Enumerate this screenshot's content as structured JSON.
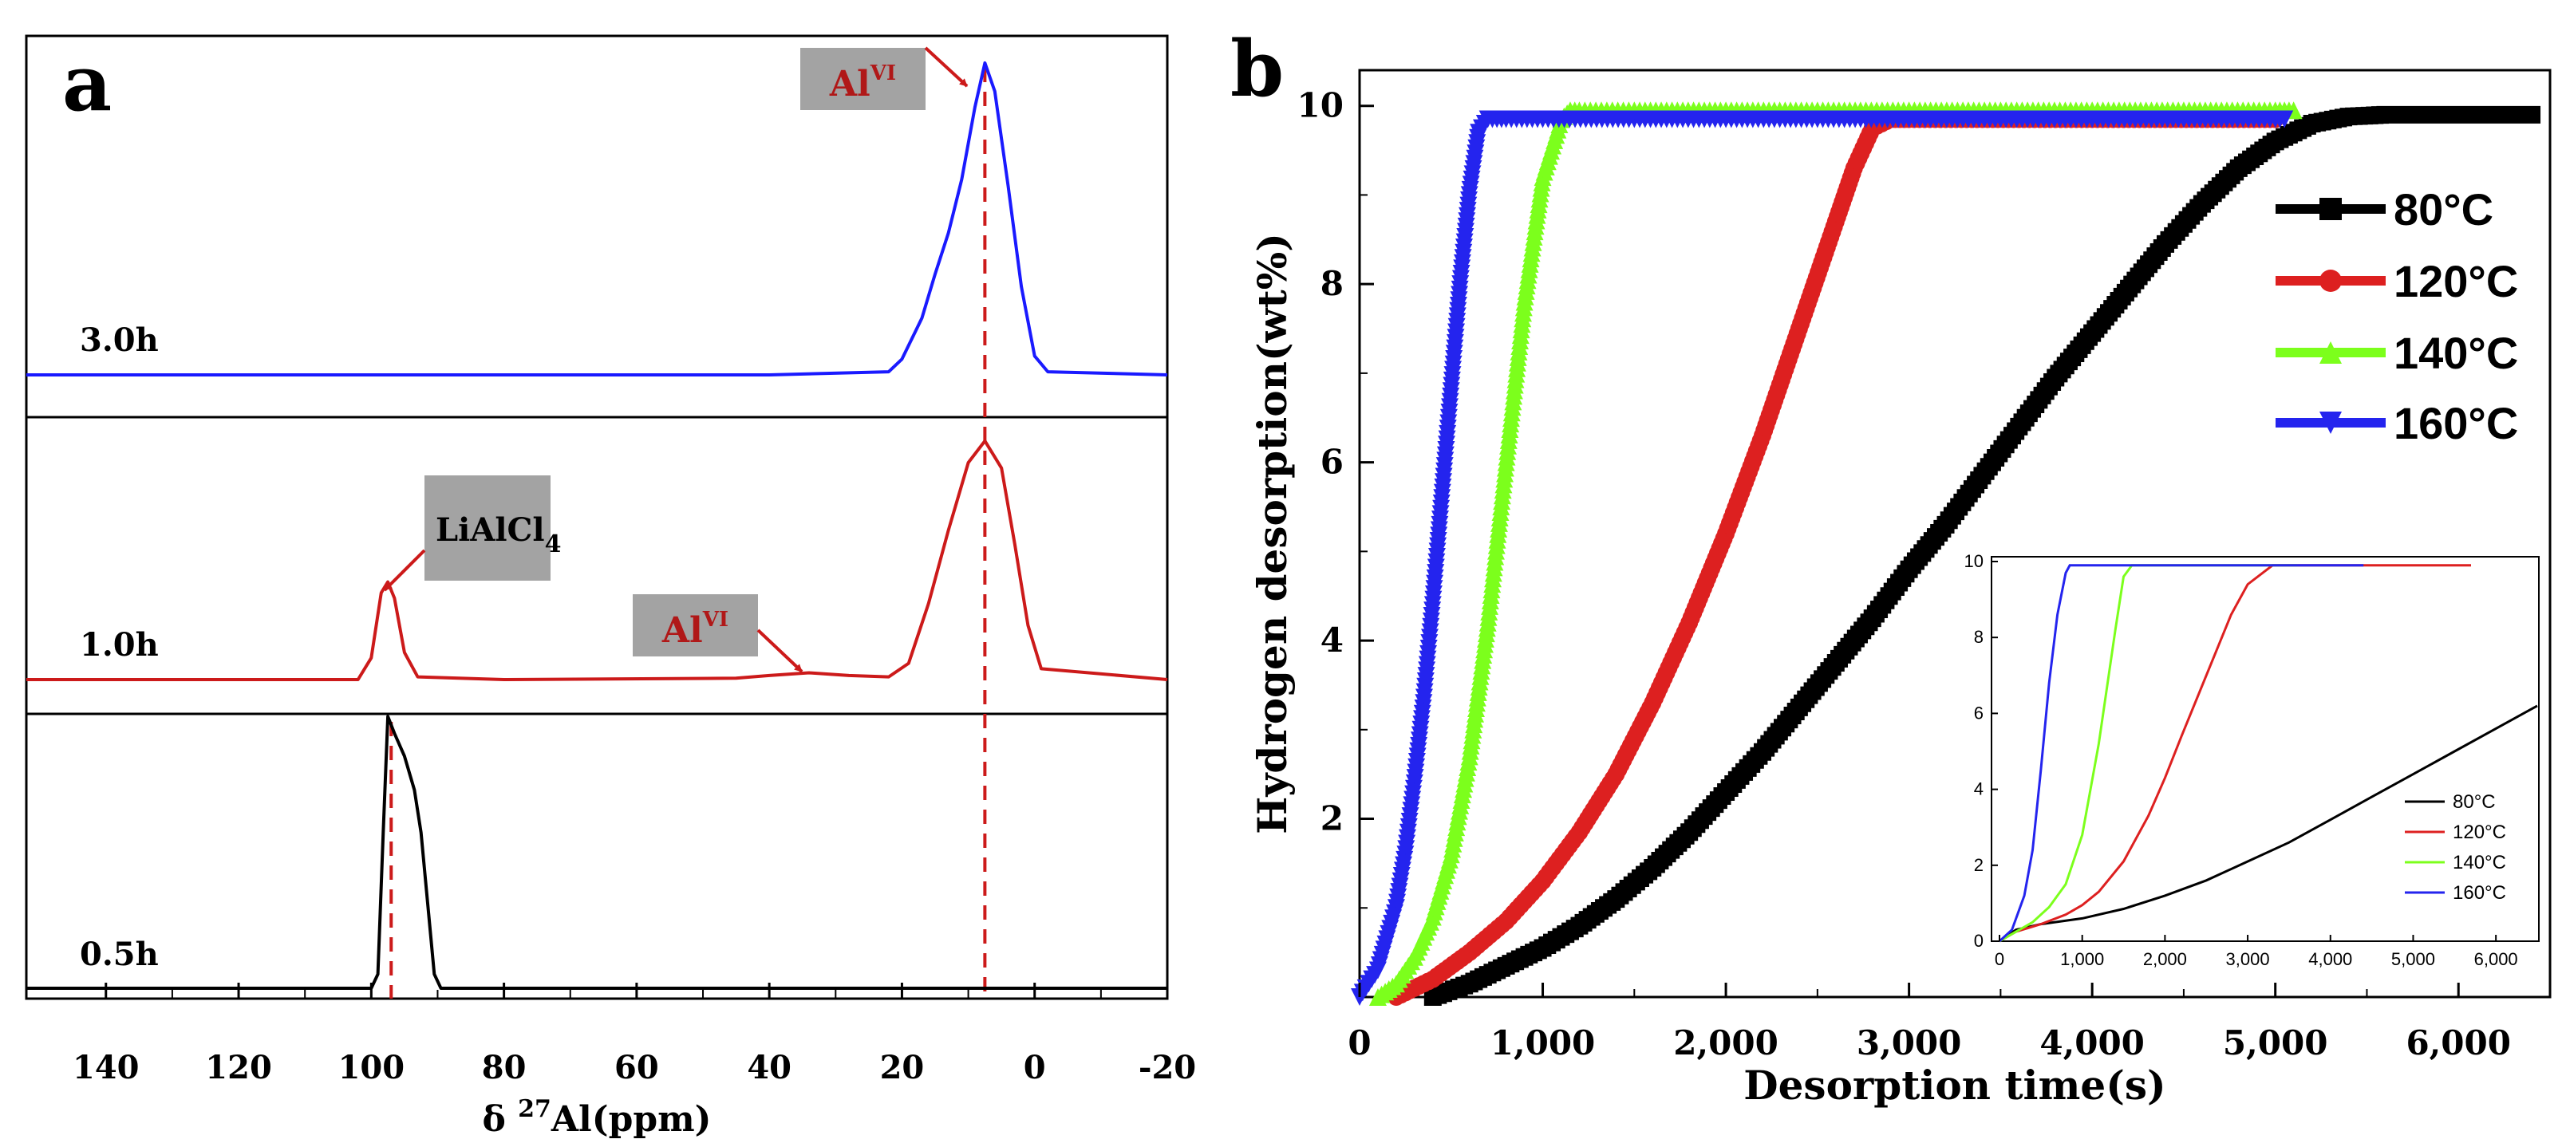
{
  "chart_data": [
    {
      "panel": "a",
      "type": "line",
      "xlabel": "δ ²⁷Al(ppm)",
      "xlabel_parts": {
        "prefix": "δ ",
        "sup": "27",
        "suffix": "Al(ppm)"
      },
      "xlim": [
        152,
        -20
      ],
      "x_ticks": [
        140,
        120,
        100,
        80,
        60,
        40,
        20,
        0,
        -20
      ],
      "x_tick_labels": [
        "140",
        "120",
        "100",
        "80",
        "60",
        "40",
        "20",
        "0",
        "-20"
      ],
      "grid": false,
      "series": [
        {
          "name": "3.0h",
          "color": "#1a1aff",
          "peaks": [
            {
              "center": 7.5,
              "width": 5.5,
              "height": 0.94
            },
            {
              "center": 13,
              "width": 5,
              "height": 0.25
            }
          ],
          "points": [
            [
              152,
              0
            ],
            [
              40,
              0
            ],
            [
              22,
              0.01
            ],
            [
              20,
              0.05
            ],
            [
              17,
              0.18
            ],
            [
              15,
              0.32
            ],
            [
              13,
              0.45
            ],
            [
              11,
              0.62
            ],
            [
              9,
              0.85
            ],
            [
              7.5,
              0.99
            ],
            [
              6,
              0.9
            ],
            [
              4,
              0.6
            ],
            [
              2,
              0.28
            ],
            [
              0,
              0.06
            ],
            [
              -2,
              0.01
            ],
            [
              -20,
              0
            ]
          ]
        },
        {
          "name": "1.0h",
          "color": "#cc1a1a",
          "peaks": [
            {
              "center": 97.5,
              "width": 2.2,
              "height": 0.35
            },
            {
              "center": 7.5,
              "width": 5.5,
              "height": 0.88
            },
            {
              "center": 34,
              "width": 6,
              "height": 0.02
            }
          ],
          "points": [
            [
              152,
              0
            ],
            [
              102,
              0
            ],
            [
              100,
              0.08
            ],
            [
              98.5,
              0.32
            ],
            [
              97.5,
              0.36
            ],
            [
              96.5,
              0.3
            ],
            [
              95,
              0.1
            ],
            [
              93,
              0.01
            ],
            [
              80,
              0
            ],
            [
              45,
              0.005
            ],
            [
              40,
              0.015
            ],
            [
              34,
              0.025
            ],
            [
              28,
              0.015
            ],
            [
              22,
              0.01
            ],
            [
              19,
              0.06
            ],
            [
              16,
              0.28
            ],
            [
              13,
              0.55
            ],
            [
              10,
              0.8
            ],
            [
              7.5,
              0.88
            ],
            [
              5,
              0.78
            ],
            [
              3,
              0.5
            ],
            [
              1,
              0.2
            ],
            [
              -1,
              0.04
            ],
            [
              -20,
              0
            ]
          ]
        },
        {
          "name": "0.5h",
          "color": "#000000",
          "peaks": [
            {
              "center": 97,
              "width": 2.5,
              "height": 0.92
            }
          ],
          "points": [
            [
              152,
              0
            ],
            [
              100,
              0
            ],
            [
              99,
              0.05
            ],
            [
              98.2,
              0.55
            ],
            [
              97.5,
              0.96
            ],
            [
              96.5,
              0.9
            ],
            [
              95,
              0.82
            ],
            [
              93.5,
              0.7
            ],
            [
              92.5,
              0.55
            ],
            [
              91.5,
              0.3
            ],
            [
              90.5,
              0.05
            ],
            [
              89.5,
              0
            ],
            [
              -20,
              0
            ]
          ]
        }
      ],
      "annotations": [
        {
          "text": "Al",
          "sup": "VI",
          "target_x": 7.5,
          "series": "3.0h"
        },
        {
          "text": "LiAlCl",
          "sub": "4",
          "target_x": 97.5,
          "series": "1.0h"
        },
        {
          "text": "Al",
          "sup": "VI",
          "target_x": 34,
          "series": "1.0h"
        }
      ],
      "reference_lines": [
        97,
        7.5
      ],
      "reference_line_color": "#cc1a1a"
    },
    {
      "panel": "b",
      "type": "scatter",
      "xlabel": "Desorption time(s)",
      "ylabel": "Hydrogen desorption(wt%)",
      "xlim": [
        0,
        6500
      ],
      "ylim": [
        0,
        10.4
      ],
      "x_ticks": [
        0,
        1000,
        2000,
        3000,
        4000,
        5000,
        6000
      ],
      "x_tick_labels": [
        "0",
        "1,000",
        "2,000",
        "3,000",
        "4,000",
        "5,000",
        "6,000"
      ],
      "y_ticks": [
        2,
        4,
        6,
        8,
        10
      ],
      "y_tick_labels": [
        "2",
        "4",
        "6",
        "8",
        "10"
      ],
      "grid": false,
      "legend_position": "top-right",
      "series": [
        {
          "name": "80°C",
          "color": "#000000",
          "marker": "square",
          "x": [
            400,
            600,
            800,
            1000,
            1200,
            1400,
            1600,
            1800,
            2000,
            2200,
            2400,
            2600,
            2800,
            3000,
            3200,
            3400,
            3600,
            3800,
            4000,
            4200,
            4400,
            4600,
            4800,
            5000,
            5200,
            5400,
            5600,
            5800,
            6000,
            6200,
            6400
          ],
          "y": [
            0,
            0.15,
            0.35,
            0.55,
            0.8,
            1.1,
            1.45,
            1.85,
            2.3,
            2.75,
            3.25,
            3.75,
            4.25,
            4.8,
            5.3,
            5.85,
            6.4,
            6.95,
            7.45,
            7.95,
            8.45,
            8.9,
            9.3,
            9.6,
            9.8,
            9.88,
            9.9,
            9.9,
            9.9,
            9.9,
            9.9
          ]
        },
        {
          "name": "120°C",
          "color": "#dd2020",
          "marker": "circle",
          "x": [
            200,
            400,
            600,
            800,
            1000,
            1200,
            1400,
            1600,
            1800,
            2000,
            2200,
            2400,
            2600,
            2700,
            2800,
            2900,
            3000,
            3200,
            3400,
            3600,
            3800,
            4000,
            4200,
            4400,
            4600,
            4800,
            5000
          ],
          "y": [
            0,
            0.2,
            0.5,
            0.85,
            1.3,
            1.85,
            2.5,
            3.3,
            4.2,
            5.2,
            6.3,
            7.5,
            8.7,
            9.3,
            9.75,
            9.85,
            9.85,
            9.85,
            9.85,
            9.85,
            9.85,
            9.85,
            9.85,
            9.85,
            9.85,
            9.85,
            9.85
          ]
        },
        {
          "name": "140°C",
          "color": "#7cff1c",
          "marker": "triangle-up",
          "x": [
            100,
            200,
            300,
            400,
            500,
            600,
            700,
            800,
            900,
            1000,
            1100,
            1150,
            1200,
            1500,
            2000,
            2500,
            3000,
            3500,
            4000,
            4500,
            5000,
            5100
          ],
          "y": [
            0,
            0.15,
            0.45,
            0.9,
            1.6,
            2.7,
            4.2,
            6,
            7.8,
            9.2,
            9.85,
            9.95,
            9.95,
            9.95,
            9.95,
            9.95,
            9.95,
            9.95,
            9.95,
            9.95,
            9.95,
            9.95
          ]
        },
        {
          "name": "160°C",
          "color": "#2424ee",
          "marker": "triangle-down",
          "x": [
            0,
            100,
            200,
            250,
            300,
            350,
            400,
            450,
            500,
            550,
            600,
            650,
            700,
            800,
            1000,
            1500,
            2000,
            2500,
            3000,
            3500,
            4000,
            4500,
            5000,
            5050
          ],
          "y": [
            0,
            0.3,
            1,
            1.6,
            2.4,
            3.3,
            4.4,
            5.6,
            6.8,
            8,
            9,
            9.7,
            9.85,
            9.85,
            9.85,
            9.85,
            9.85,
            9.85,
            9.85,
            9.85,
            9.85,
            9.85,
            9.85,
            9.85
          ]
        }
      ],
      "inset": {
        "type": "line",
        "xlim": [
          0,
          6500
        ],
        "ylim": [
          0,
          10
        ],
        "x_ticks": [
          0,
          1000,
          2000,
          3000,
          4000,
          5000,
          6000
        ],
        "x_tick_labels": [
          "0",
          "1,000",
          "2,000",
          "3,000",
          "4,000",
          "5,000",
          "6,000"
        ],
        "y_ticks": [
          0,
          2,
          4,
          6,
          8,
          10
        ],
        "y_tick_labels": [
          "0",
          "2",
          "4",
          "6",
          "8",
          "10"
        ],
        "legend_position": "bottom-right",
        "series": [
          {
            "name": "80°C",
            "color": "#000000",
            "x": [
              0,
              200,
              500,
              1000,
              1500,
              2000,
              2500,
              3000,
              3500,
              4000,
              4500,
              5000,
              5500,
              6000,
              6500
            ],
            "y": [
              0,
              0.3,
              0.45,
              0.6,
              0.85,
              1.2,
              1.6,
              2.1,
              2.6,
              3.2,
              3.8,
              4.4,
              5,
              5.6,
              6.2
            ]
          },
          {
            "name": "120°C",
            "color": "#dd2020",
            "x": [
              0,
              200,
              500,
              800,
              1000,
              1200,
              1500,
              1800,
              2000,
              2200,
              2500,
              2800,
              3000,
              3300,
              3600,
              4000,
              5000,
              5700
            ],
            "y": [
              0,
              0.25,
              0.45,
              0.7,
              0.95,
              1.3,
              2.1,
              3.3,
              4.3,
              5.4,
              7,
              8.6,
              9.4,
              9.9,
              9.9,
              9.9,
              9.9,
              9.9
            ]
          },
          {
            "name": "140°C",
            "color": "#7cff1c",
            "x": [
              0,
              200,
              400,
              600,
              800,
              1000,
              1200,
              1400,
              1500,
              1600,
              2000,
              3000,
              3600
            ],
            "y": [
              0,
              0.25,
              0.5,
              0.9,
              1.5,
              2.8,
              5.2,
              8.2,
              9.6,
              9.9,
              9.9,
              9.9,
              9.9
            ]
          },
          {
            "name": "160°C",
            "color": "#2424ee",
            "x": [
              0,
              150,
              300,
              400,
              500,
              600,
              700,
              800,
              850,
              900,
              1200,
              2000,
              3000,
              4000,
              4400
            ],
            "y": [
              0,
              0.3,
              1.2,
              2.4,
              4.5,
              6.8,
              8.6,
              9.7,
              9.9,
              9.9,
              9.9,
              9.9,
              9.9,
              9.9,
              9.9
            ]
          }
        ]
      }
    }
  ],
  "labels": {
    "panel_a": "a",
    "panel_b": "b"
  }
}
